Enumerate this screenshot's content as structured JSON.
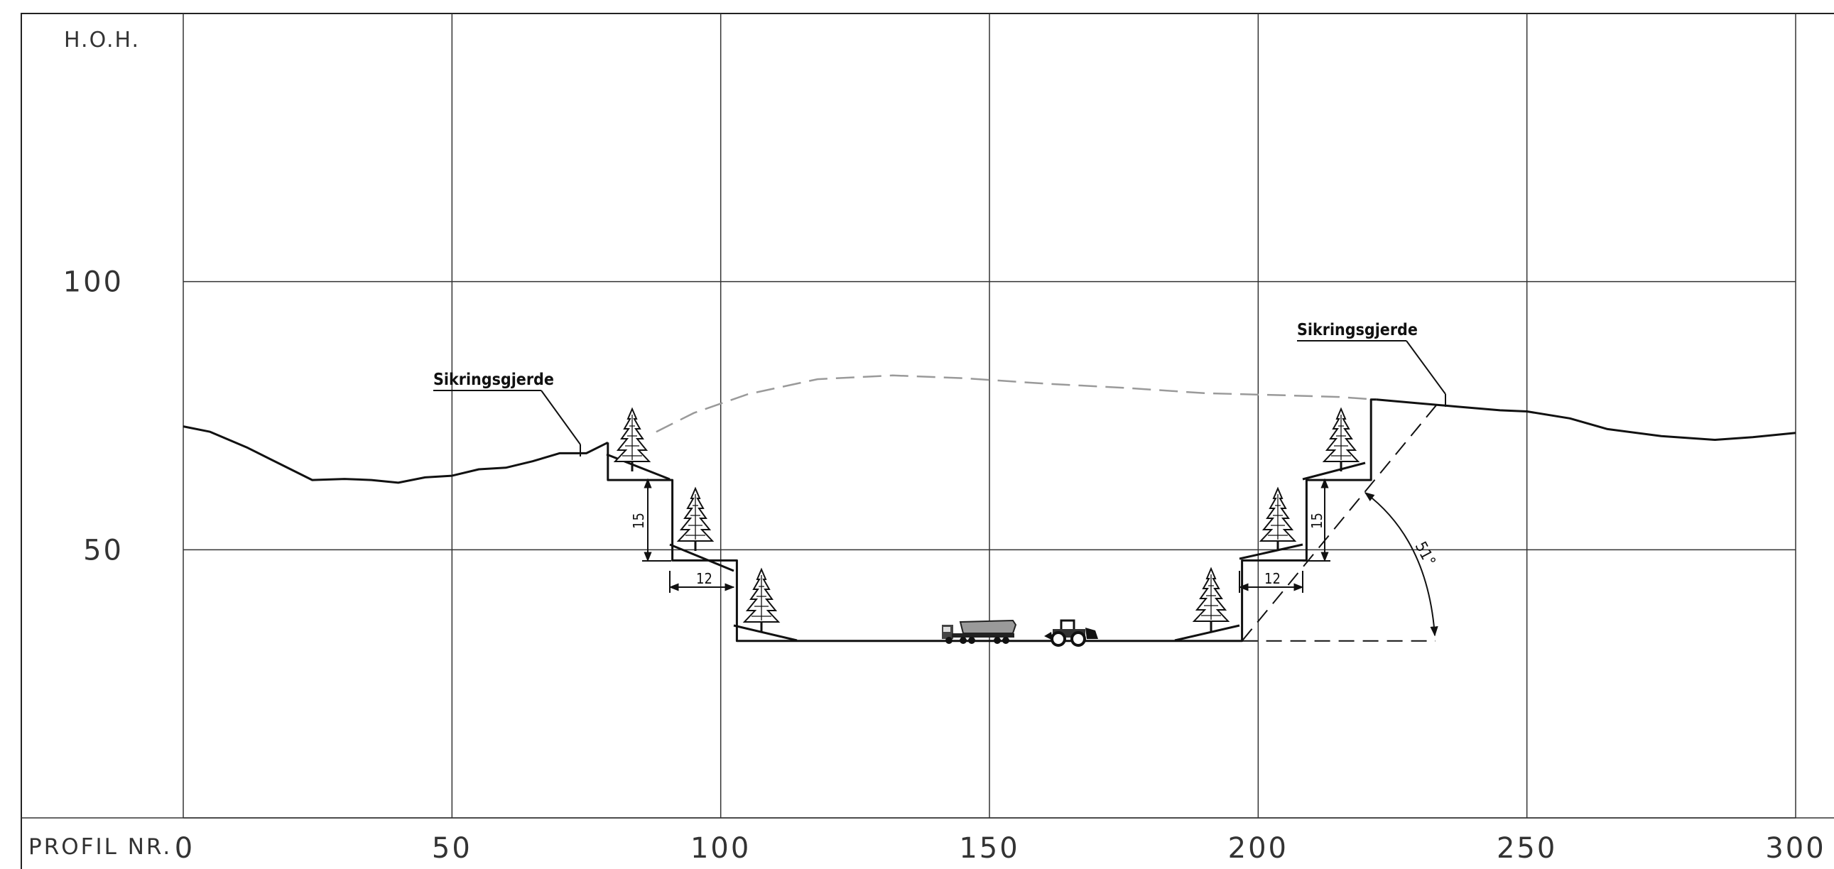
{
  "header": {
    "y_axis_label": "H.O.H."
  },
  "footer": {
    "x_axis_label": "PROFIL NR."
  },
  "axes": {
    "x_ticks": [
      "0",
      "50",
      "100",
      "150",
      "200",
      "250",
      "300"
    ],
    "y_ticks": [
      "100",
      "50"
    ],
    "x_range": [
      0,
      300
    ],
    "y_range": [
      0,
      150
    ]
  },
  "annotations": {
    "fence_left": "Sikringsgjerde",
    "fence_right": "Sikringsgjerde",
    "bench_height_left": "15",
    "bench_width_left": "12",
    "bench_height_right": "15",
    "bench_width_right": "12",
    "slope_angle": "51°"
  },
  "icons": {
    "trees": "spruce-tree-icon",
    "truck": "dump-truck-icon",
    "loader": "wheel-loader-icon"
  },
  "chart_data": {
    "type": "line",
    "xlabel": "PROFIL NR.",
    "ylabel": "H.O.H.",
    "xlim": [
      0,
      300
    ],
    "ylim": [
      0,
      150
    ],
    "grid": true,
    "series": [
      {
        "id": "terrain_left",
        "style": "solid",
        "points": [
          [
            0,
            73
          ],
          [
            5,
            72
          ],
          [
            12,
            69
          ],
          [
            18,
            66
          ],
          [
            24,
            63
          ],
          [
            30,
            63.2
          ],
          [
            35,
            63
          ],
          [
            40,
            62.5
          ],
          [
            45,
            63.5
          ],
          [
            50,
            63.8
          ],
          [
            55,
            65
          ],
          [
            60,
            65.3
          ],
          [
            65,
            66.5
          ],
          [
            70,
            68
          ],
          [
            75,
            68
          ],
          [
            79,
            70
          ]
        ]
      },
      {
        "id": "terrain_right",
        "style": "solid",
        "points": [
          [
            222,
            78
          ],
          [
            230,
            77.3
          ],
          [
            237,
            76.7
          ],
          [
            245,
            76
          ],
          [
            250,
            75.8
          ],
          [
            258,
            74.5
          ],
          [
            265,
            72.5
          ],
          [
            275,
            71.2
          ],
          [
            285,
            70.5
          ],
          [
            292,
            71
          ],
          [
            300,
            71.8
          ]
        ]
      },
      {
        "id": "original_terrain",
        "style": "dashed",
        "points": [
          [
            88,
            72
          ],
          [
            95,
            75.5
          ],
          [
            105,
            79
          ],
          [
            118,
            81.8
          ],
          [
            132,
            82.5
          ],
          [
            145,
            82
          ],
          [
            160,
            81
          ],
          [
            175,
            80.2
          ],
          [
            190,
            79.2
          ],
          [
            205,
            78.8
          ],
          [
            215,
            78.5
          ],
          [
            222,
            78
          ]
        ]
      },
      {
        "id": "excavation_profile",
        "style": "solid",
        "points": [
          [
            79,
            70
          ],
          [
            79,
            63
          ],
          [
            91,
            63
          ],
          [
            91,
            48
          ],
          [
            103,
            48
          ],
          [
            103,
            33
          ],
          [
            197,
            33
          ],
          [
            197,
            48
          ],
          [
            209,
            48
          ],
          [
            209,
            63
          ],
          [
            221,
            63
          ],
          [
            221,
            78
          ],
          [
            222,
            78
          ]
        ]
      },
      {
        "id": "slope_reference",
        "style": "dashed",
        "points": [
          [
            197,
            33
          ],
          [
            234,
            78
          ]
        ]
      },
      {
        "id": "slope_base",
        "style": "dashed",
        "points": [
          [
            197,
            33
          ],
          [
            233,
            33
          ]
        ]
      }
    ]
  }
}
